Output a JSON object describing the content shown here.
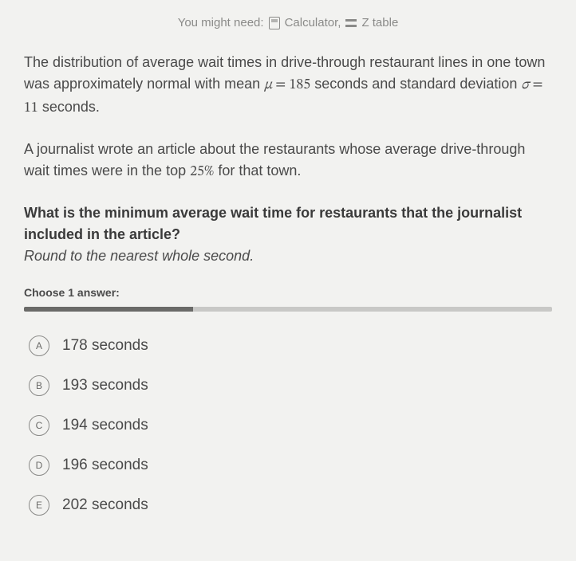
{
  "hint": {
    "prefix": "You might need:",
    "calculator": "Calculator,",
    "ztable": "Z table"
  },
  "problem": {
    "p1a": "The distribution of average wait times in drive-through restaurant lines in one town was approximately normal with mean ",
    "mu": "μ",
    "eq1": " = ",
    "mean_val": "185",
    "p1b": " seconds and standard deviation ",
    "sigma": "σ",
    "eq2": " = ",
    "sd_val": "11",
    "p1c": " seconds.",
    "p2a": "A journalist wrote an article about the restaurants whose average drive-through wait times were in the top ",
    "pct": "25%",
    "p2b": " for that town.",
    "q": "What is the minimum average wait time for restaurants that the journalist included in the article?",
    "round": "Round to the nearest whole second."
  },
  "choose_label": "Choose 1 answer:",
  "choices": [
    {
      "letter": "A",
      "text": "178 seconds"
    },
    {
      "letter": "B",
      "text": "193 seconds"
    },
    {
      "letter": "C",
      "text": "194 seconds"
    },
    {
      "letter": "D",
      "text": "196 seconds"
    },
    {
      "letter": "E",
      "text": "202 seconds"
    }
  ],
  "style": {
    "bg": "#f2f2f0",
    "text": "#4a4a4a",
    "muted": "#8a8a88",
    "bar_fill": "#6a6a68",
    "bar_empty": "#c8c8c6",
    "progress_pct": 32
  }
}
